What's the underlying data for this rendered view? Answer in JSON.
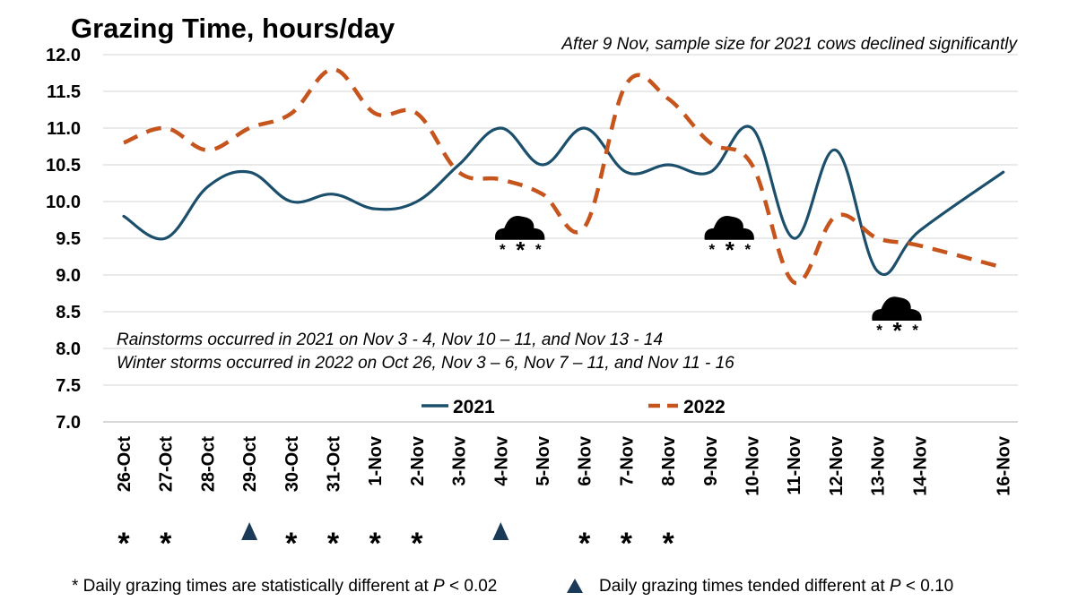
{
  "chart_data": {
    "type": "line",
    "title": "Grazing Time, hours/day",
    "subtitle": "After 9 Nov, sample size for 2021 cows declined significantly",
    "ylim": [
      7.0,
      12.0
    ],
    "y_ticks": [
      "7.0",
      "7.5",
      "8.0",
      "8.5",
      "9.0",
      "9.5",
      "10.0",
      "10.5",
      "11.0",
      "11.5",
      "12.0"
    ],
    "x_ticks": [
      {
        "label": "26-Oct",
        "day": 0
      },
      {
        "label": "27-Oct",
        "day": 1
      },
      {
        "label": "28-Oct",
        "day": 2
      },
      {
        "label": "29-Oct",
        "day": 3
      },
      {
        "label": "30-Oct",
        "day": 4
      },
      {
        "label": "31-Oct",
        "day": 5
      },
      {
        "label": "1-Nov",
        "day": 6
      },
      {
        "label": "2-Nov",
        "day": 7
      },
      {
        "label": "3-Nov",
        "day": 8
      },
      {
        "label": "4-Nov",
        "day": 9
      },
      {
        "label": "5-Nov",
        "day": 10
      },
      {
        "label": "6-Nov",
        "day": 11
      },
      {
        "label": "7-Nov",
        "day": 12
      },
      {
        "label": "8-Nov",
        "day": 13
      },
      {
        "label": "9-Nov",
        "day": 14
      },
      {
        "label": "10-Nov",
        "day": 15
      },
      {
        "label": "11-Nov",
        "day": 16
      },
      {
        "label": "12-Nov",
        "day": 17
      },
      {
        "label": "13-Nov",
        "day": 18
      },
      {
        "label": "14-Nov",
        "day": 19
      },
      {
        "label": "16-Nov",
        "day": 21
      }
    ],
    "series": [
      {
        "name": "2021",
        "color": "#1b4f6b",
        "style": "solid",
        "points": [
          {
            "x": "26-Oct",
            "y": 9.8
          },
          {
            "x": "27-Oct",
            "y": 9.5
          },
          {
            "x": "28-Oct",
            "y": 10.2
          },
          {
            "x": "29-Oct",
            "y": 10.4
          },
          {
            "x": "30-Oct",
            "y": 10.0
          },
          {
            "x": "31-Oct",
            "y": 10.1
          },
          {
            "x": "1-Nov",
            "y": 9.9
          },
          {
            "x": "2-Nov",
            "y": 10.0
          },
          {
            "x": "3-Nov",
            "y": 10.5
          },
          {
            "x": "4-Nov",
            "y": 11.0
          },
          {
            "x": "5-Nov",
            "y": 10.5
          },
          {
            "x": "6-Nov",
            "y": 11.0
          },
          {
            "x": "7-Nov",
            "y": 10.4
          },
          {
            "x": "8-Nov",
            "y": 10.5
          },
          {
            "x": "9-Nov",
            "y": 10.4
          },
          {
            "x": "10-Nov",
            "y": 11.0
          },
          {
            "x": "11-Nov",
            "y": 9.5
          },
          {
            "x": "12-Nov",
            "y": 10.7
          },
          {
            "x": "13-Nov",
            "y": 9.05
          },
          {
            "x": "14-Nov",
            "y": 9.6
          },
          {
            "x": "16-Nov",
            "y": 10.4
          }
        ]
      },
      {
        "name": "2022",
        "color": "#c5551d",
        "style": "dashed",
        "points": [
          {
            "x": "26-Oct",
            "y": 10.8
          },
          {
            "x": "27-Oct",
            "y": 11.0
          },
          {
            "x": "28-Oct",
            "y": 10.7
          },
          {
            "x": "29-Oct",
            "y": 11.0
          },
          {
            "x": "30-Oct",
            "y": 11.2
          },
          {
            "x": "31-Oct",
            "y": 11.8
          },
          {
            "x": "1-Nov",
            "y": 11.2
          },
          {
            "x": "2-Nov",
            "y": 11.2
          },
          {
            "x": "3-Nov",
            "y": 10.4
          },
          {
            "x": "4-Nov",
            "y": 10.3
          },
          {
            "x": "5-Nov",
            "y": 10.1
          },
          {
            "x": "6-Nov",
            "y": 9.65
          },
          {
            "x": "7-Nov",
            "y": 11.6
          },
          {
            "x": "8-Nov",
            "y": 11.4
          },
          {
            "x": "9-Nov",
            "y": 10.8
          },
          {
            "x": "10-Nov",
            "y": 10.5
          },
          {
            "x": "11-Nov",
            "y": 8.9
          },
          {
            "x": "12-Nov",
            "y": 9.8
          },
          {
            "x": "13-Nov",
            "y": 9.5
          },
          {
            "x": "14-Nov",
            "y": 9.4
          },
          {
            "x": "16-Nov",
            "y": 9.1
          }
        ]
      }
    ],
    "annotations": [
      "Rainstorms occurred in 2021 on Nov 3 - 4, Nov 10 – 11, and Nov 13 - 14",
      "Winter storms occurred in 2022 on Oct 26, Nov 3 – 6, Nov 7 – 11, and Nov 11 - 16"
    ],
    "storm_icons": [
      {
        "x": "4-Nov",
        "y": 9.6
      },
      {
        "x": "9-Nov",
        "y": 9.6
      },
      {
        "x": "13-Nov",
        "y": 8.5
      }
    ],
    "significance_marks": [
      {
        "x": "26-Oct",
        "mark": "asterisk"
      },
      {
        "x": "27-Oct",
        "mark": "asterisk"
      },
      {
        "x": "29-Oct",
        "mark": "triangle"
      },
      {
        "x": "30-Oct",
        "mark": "asterisk"
      },
      {
        "x": "31-Oct",
        "mark": "asterisk"
      },
      {
        "x": "1-Nov",
        "mark": "asterisk"
      },
      {
        "x": "2-Nov",
        "mark": "asterisk"
      },
      {
        "x": "4-Nov",
        "mark": "triangle"
      },
      {
        "x": "6-Nov",
        "mark": "asterisk"
      },
      {
        "x": "7-Nov",
        "mark": "asterisk"
      },
      {
        "x": "8-Nov",
        "mark": "asterisk"
      }
    ],
    "grid": true,
    "legend_position": "bottom-center",
    "footnote_asterisk": "* Daily grazing times are statistically different at P < 0.02",
    "footnote_triangle": "Daily grazing times tended different at P < 0.10",
    "icons": {
      "storm": "snow-cloud-icon",
      "triangle": "triangle-icon",
      "asterisk": "asterisk-icon"
    }
  }
}
